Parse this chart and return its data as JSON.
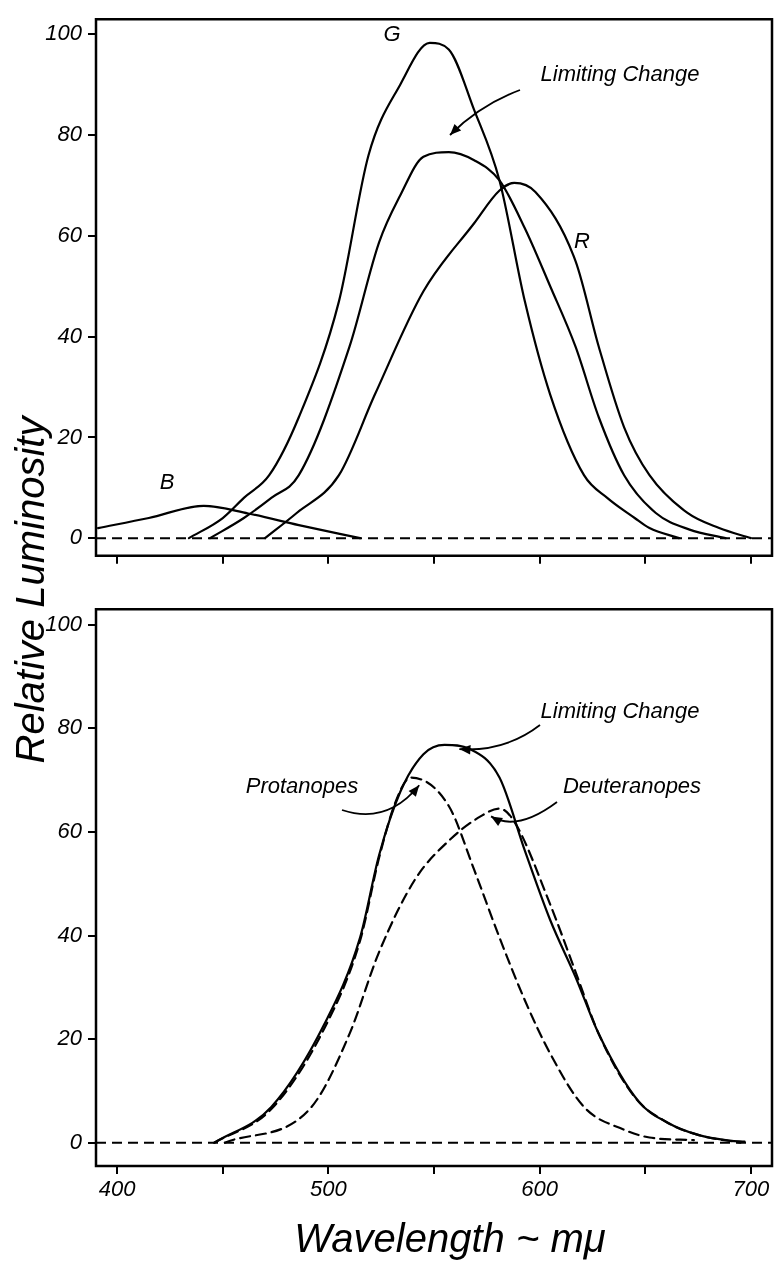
{
  "chart_data": [
    {
      "type": "line",
      "ylabel": "Relative Luminosity",
      "xlim": [
        390,
        710
      ],
      "ylim": [
        -3.5,
        103
      ],
      "xticks": [
        400,
        {
          "value": 450,
          "label": null
        },
        500,
        {
          "value": 550,
          "label": null
        },
        600,
        {
          "value": 650,
          "label": null
        },
        700
      ],
      "yticks": [
        0,
        20,
        40,
        60,
        80,
        100
      ],
      "tick_labels": "y",
      "marker": "none",
      "line_style": "solid",
      "ref_lines": [
        {
          "axis": "y",
          "value": 0,
          "line_style": "dashed",
          "color": "#000000"
        }
      ],
      "annotations": [
        "G",
        "Limiting Change",
        "R",
        "B"
      ],
      "series": [
        {
          "color": "#000000",
          "x": [
            434,
            450,
            460,
            472,
            486,
            505,
            519,
            534,
            548,
            557,
            569,
            581,
            593,
            605,
            621,
            632,
            645,
            652,
            666
          ],
          "values": [
            0,
            4,
            8,
            12.5,
            24,
            47,
            76,
            90,
            98.3,
            97,
            85,
            71,
            47,
            28.5,
            12.5,
            8,
            4,
            2,
            0
          ]
        },
        {
          "color": "#000000",
          "x": [
            444,
            460,
            473,
            486,
            510,
            524,
            534,
            545,
            557,
            569,
            581,
            593,
            605,
            617,
            628,
            640,
            655,
            671,
            688
          ],
          "values": [
            0,
            4,
            8,
            12.5,
            38,
            58.7,
            68,
            75.7,
            76.6,
            75,
            71,
            61.5,
            50,
            38,
            24,
            12.5,
            5,
            1.7,
            0
          ]
        },
        {
          "color": "#000000",
          "x": [
            470,
            485,
            505,
            522,
            545,
            569,
            581,
            588,
            598,
            617,
            628,
            640,
            652,
            670,
            685,
            700
          ],
          "values": [
            0,
            5,
            12.5,
            28.5,
            49,
            62.5,
            69,
            70.5,
            68.7,
            55,
            38,
            22,
            12.5,
            5,
            2,
            0
          ]
        },
        {
          "color": "#000000",
          "x": [
            391,
            415,
            441,
            462,
            486,
            515
          ],
          "values": [
            2,
            4,
            6.4,
            4.9,
            2.6,
            0
          ]
        }
      ]
    },
    {
      "type": "line",
      "xlabel": "Wavelength ~ mμ",
      "xlim": [
        390,
        710
      ],
      "ylim": [
        -4.5,
        103
      ],
      "xticks": [
        400,
        {
          "value": 450,
          "label": null
        },
        500,
        {
          "value": 550,
          "label": null
        },
        600,
        {
          "value": 650,
          "label": null
        },
        700
      ],
      "yticks": [
        0,
        20,
        40,
        60,
        80,
        100
      ],
      "marker": "none",
      "line_style": "solid",
      "ref_lines": [
        {
          "axis": "y",
          "value": 0,
          "line_style": "dashed",
          "color": "#000000"
        }
      ],
      "annotations": [
        {
          "text": "Limiting Change",
          "x": 562,
          "y": 76
        },
        {
          "text": "Protanopes",
          "x": 543,
          "y": 69
        },
        {
          "text": "Deuteranopes",
          "x": 577,
          "y": 63
        }
      ],
      "series": [
        {
          "color": "#000000",
          "x": [
            446,
            473,
            498,
            515,
            524,
            534,
            545,
            555,
            567,
            581,
            593,
            605,
            617,
            628,
            647,
            660,
            675,
            690,
            697
          ],
          "values": [
            0,
            6.9,
            22.8,
            39.6,
            55.5,
            67.7,
            75,
            76.8,
            76,
            70.5,
            56.4,
            43,
            32,
            21,
            7.9,
            4,
            1.5,
            0.4,
            0.2
          ]
        },
        {
          "color": "#000000",
          "line_style": "dashed",
          "x": [
            446,
            473,
            498,
            515,
            524,
            532,
            539,
            557,
            569,
            581,
            593,
            605,
            621,
            640,
            652,
            673
          ],
          "values": [
            0,
            6.5,
            22,
            39,
            55,
            66,
            70.5,
            65,
            52.7,
            39.6,
            27.5,
            17.2,
            6.9,
            2.5,
            1,
            0.5
          ]
        },
        {
          "color": "#000000",
          "line_style": "dashed",
          "x": [
            451,
            492,
            510,
            524,
            541,
            557,
            572,
            581,
            588,
            605,
            617,
            628,
            645,
            660,
            675,
            695
          ],
          "values": [
            0,
            6.9,
            21,
            36.8,
            50.8,
            58.3,
            63,
            64.5,
            62,
            46,
            33,
            21,
            8.8,
            4,
            1.5,
            0
          ]
        }
      ]
    }
  ]
}
